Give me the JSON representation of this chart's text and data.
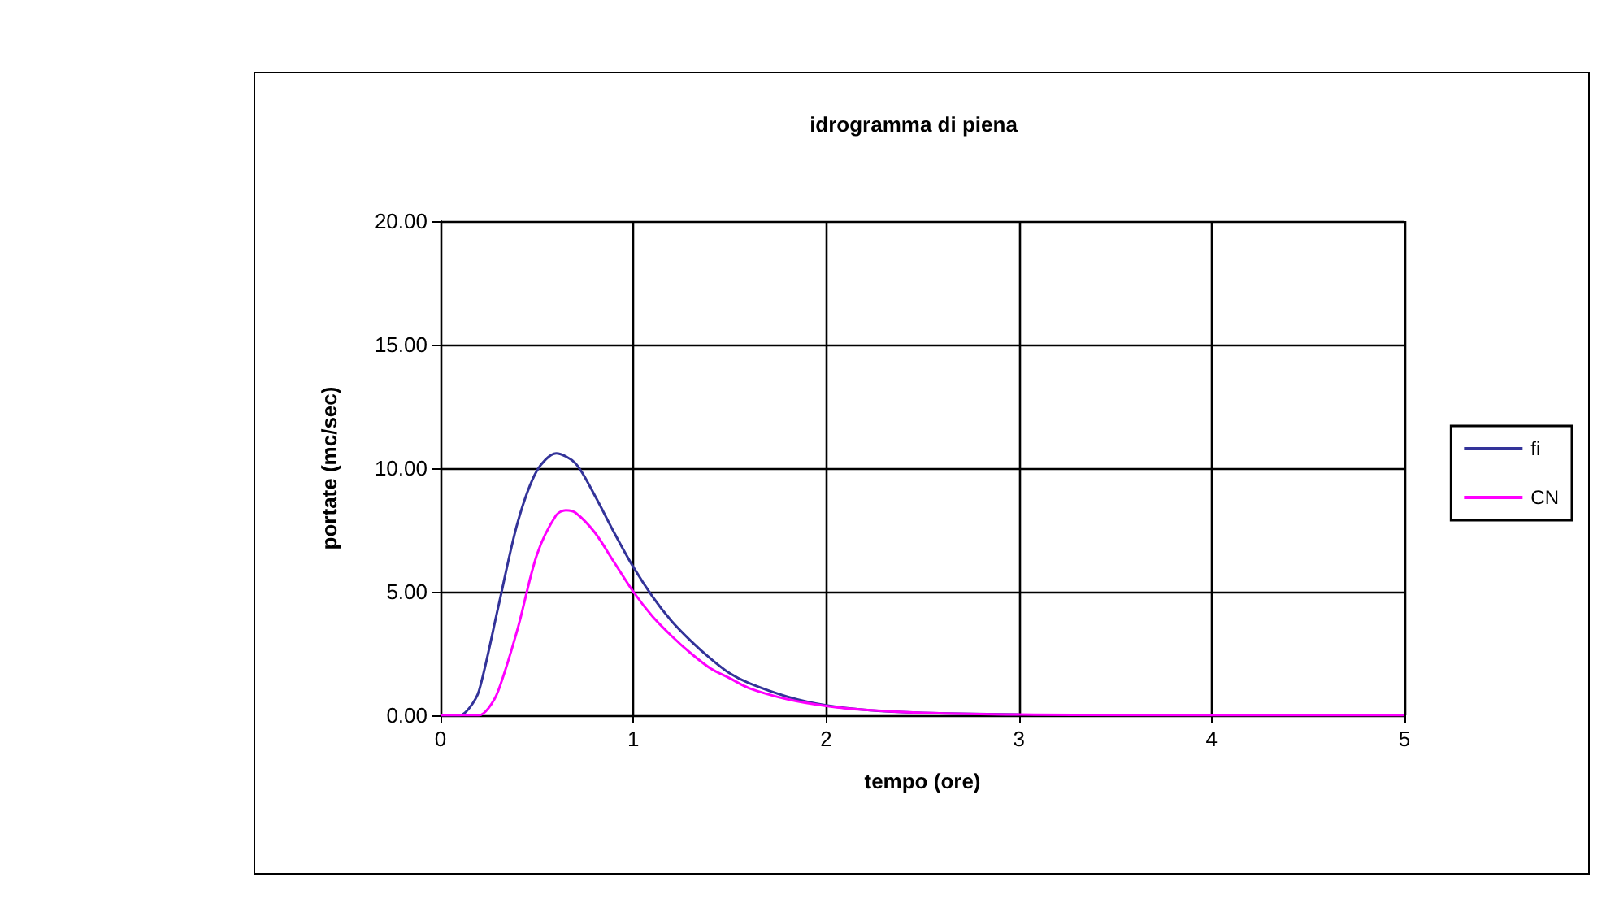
{
  "chart_data": {
    "type": "line",
    "title": "idrogramma di piena",
    "xlabel": "tempo (ore)",
    "ylabel": "portate (mc/sec)",
    "xlim": [
      0,
      5
    ],
    "xticks": [
      0,
      1,
      2,
      3,
      4,
      5
    ],
    "ylim": [
      0,
      20
    ],
    "yticks": [
      {
        "value": 0,
        "label": "0.00"
      },
      {
        "value": 5,
        "label": "5.00"
      },
      {
        "value": 10,
        "label": "10.00"
      },
      {
        "value": 15,
        "label": "15.00"
      },
      {
        "value": 20,
        "label": "20.00"
      }
    ],
    "grid": true,
    "legend": "right",
    "marker": "none",
    "line_style": "solid",
    "series": [
      {
        "name": "fi",
        "color": "#333399",
        "x": [
          0,
          0.1,
          0.15,
          0.2,
          0.3,
          0.4,
          0.5,
          0.6,
          0.7,
          0.8,
          0.9,
          1.0,
          1.1,
          1.2,
          1.3,
          1.4,
          1.5,
          1.6,
          1.8,
          2.0,
          2.2,
          2.5,
          3
        ],
        "values": [
          0,
          0,
          0.3,
          1.0,
          4.4,
          7.8,
          9.9,
          10.6,
          10.2,
          8.9,
          7.4,
          6.0,
          4.8,
          3.8,
          3.0,
          2.3,
          1.7,
          1.3,
          0.75,
          0.4,
          0.22,
          0.1,
          0.03
        ]
      },
      {
        "name": "CN",
        "color": "#ff00ff",
        "x": [
          0,
          0.2,
          0.25,
          0.3,
          0.4,
          0.5,
          0.6,
          0.65,
          0.7,
          0.8,
          0.9,
          1.0,
          1.1,
          1.2,
          1.3,
          1.4,
          1.5,
          1.6,
          1.8,
          2.0,
          2.2,
          2.5,
          3,
          4,
          5
        ],
        "values": [
          0,
          0,
          0.3,
          1.0,
          3.5,
          6.5,
          8.1,
          8.3,
          8.2,
          7.4,
          6.2,
          5.0,
          4.0,
          3.2,
          2.5,
          1.9,
          1.5,
          1.1,
          0.65,
          0.38,
          0.22,
          0.1,
          0.03,
          0,
          0
        ]
      }
    ]
  }
}
